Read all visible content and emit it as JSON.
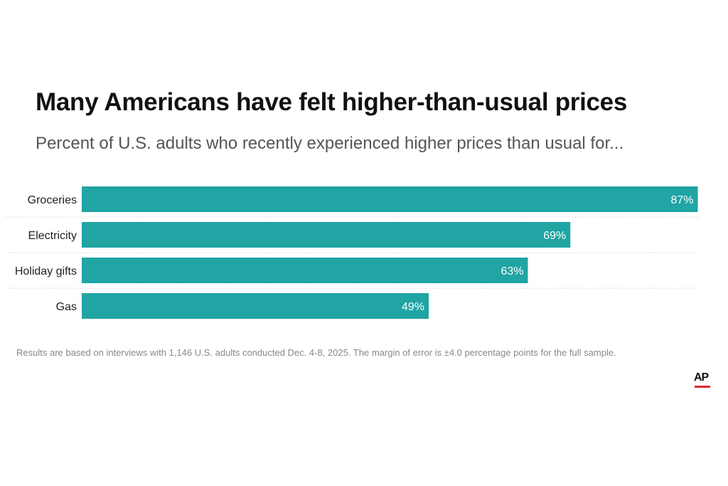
{
  "header": {
    "title": "Many Americans have felt higher-than-usual prices",
    "subtitle": "Percent of U.S. adults who recently experienced higher prices than usual for..."
  },
  "chart_data": {
    "type": "bar",
    "orientation": "horizontal",
    "title": "Many Americans have felt higher-than-usual prices",
    "subtitle": "Percent of U.S. adults who recently experienced higher prices than usual for...",
    "categories": [
      "Groceries",
      "Electricity",
      "Holiday gifts",
      "Gas"
    ],
    "values": [
      87,
      69,
      63,
      49
    ],
    "labels": [
      "87%",
      "69%",
      "63%",
      "49%"
    ],
    "xlim": [
      0,
      100
    ],
    "grid": false,
    "color": "#20a4a4"
  },
  "footer": {
    "note": "Results are based on interviews with 1,146 U.S. adults conducted Dec. 4-8, 2025. The margin of error is ±4.0 percentage points for the full sample.",
    "logo": "AP"
  }
}
